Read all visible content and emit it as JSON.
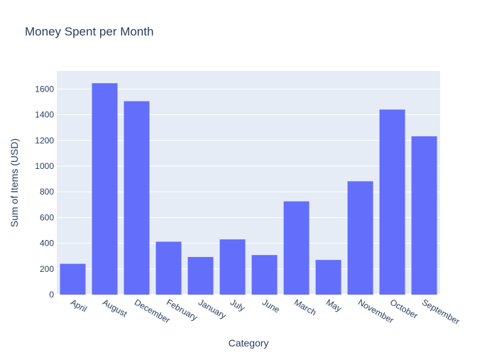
{
  "chart_data": {
    "type": "bar",
    "title": "Money Spent per Month",
    "xlabel": "Category",
    "ylabel": "Sum of Items (USD)",
    "categories": [
      "April",
      "August",
      "December",
      "February",
      "January",
      "July",
      "June",
      "March",
      "May",
      "November",
      "October",
      "September"
    ],
    "values": [
      240,
      1645,
      1505,
      412,
      293,
      430,
      308,
      726,
      270,
      882,
      1440,
      1232
    ],
    "ylim": [
      0,
      1740
    ],
    "yticks": [
      0,
      200,
      400,
      600,
      800,
      1000,
      1200,
      1400,
      1600
    ],
    "grid": true,
    "legend": "none",
    "bar_color": "#636efa",
    "plot_bg_color": "#e5ecf6"
  }
}
